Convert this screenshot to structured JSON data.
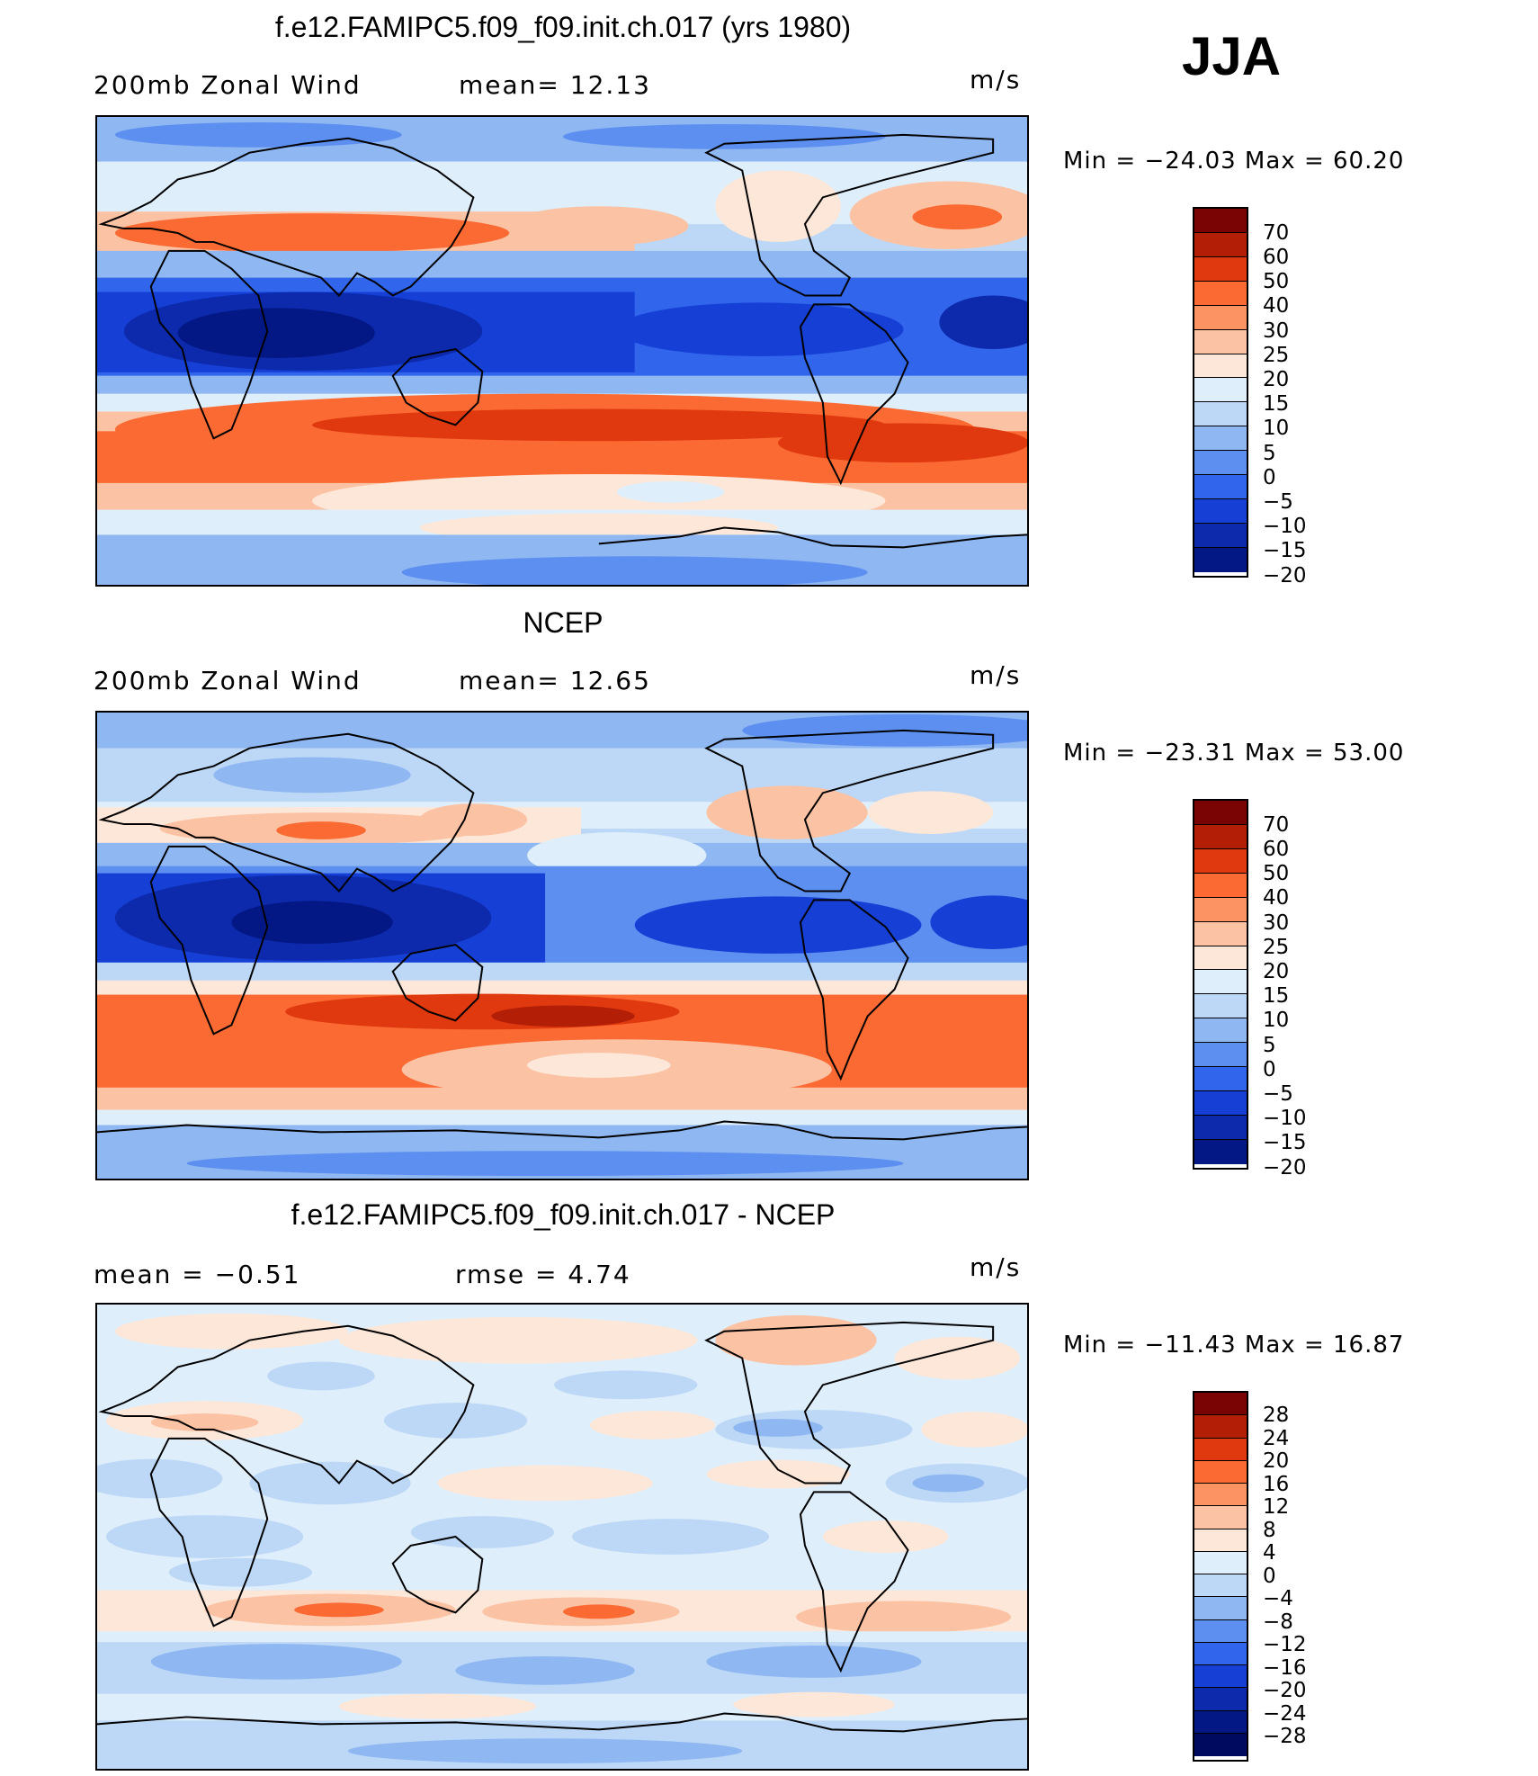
{
  "season": "JJA",
  "panels": [
    {
      "title": "f.e12.FAMIPC5.f09_f09.init.ch.017 (yrs 1980)",
      "left_label": "200mb  Zonal  Wind",
      "mid_label": "mean=   12.13",
      "unit": "m/s",
      "minmax": "Min  =  −24.03  Max  =    60.20",
      "colorbar": {
        "colors": [
          "#7a0403",
          "#b21e06",
          "#e0390f",
          "#fa6a32",
          "#fc9363",
          "#fcc2a4",
          "#fde7d8",
          "#dfeefb",
          "#bdd8f6",
          "#8fb7f1",
          "#5d8ff0",
          "#3065ec",
          "#163fd6",
          "#0c2aab",
          "#041885"
        ],
        "labels": [
          "70",
          "60",
          "50",
          "40",
          "30",
          "25",
          "20",
          "15",
          "10",
          "5",
          "0",
          "−5",
          "−10",
          "−15",
          "−20"
        ]
      }
    },
    {
      "title": "NCEP",
      "left_label": "200mb  Zonal  Wind",
      "mid_label": "mean=   12.65",
      "unit": "m/s",
      "minmax": "Min  =  −23.31  Max  =    53.00",
      "colorbar": {
        "colors": [
          "#7a0403",
          "#b21e06",
          "#e0390f",
          "#fa6a32",
          "#fc9363",
          "#fcc2a4",
          "#fde7d8",
          "#dfeefb",
          "#bdd8f6",
          "#8fb7f1",
          "#5d8ff0",
          "#3065ec",
          "#163fd6",
          "#0c2aab",
          "#041885"
        ],
        "labels": [
          "70",
          "60",
          "50",
          "40",
          "30",
          "25",
          "20",
          "15",
          "10",
          "5",
          "0",
          "−5",
          "−10",
          "−15",
          "−20"
        ]
      }
    },
    {
      "title": "f.e12.FAMIPC5.f09_f09.init.ch.017 - NCEP",
      "left_label": "mean  =    −0.51",
      "mid_label": "rmse  =     4.74",
      "unit": "m/s",
      "minmax": "Min  =  −11.43  Max  =    16.87",
      "colorbar": {
        "colors": [
          "#7a0403",
          "#b21e06",
          "#e0390f",
          "#fa6a32",
          "#fc9363",
          "#fcc2a4",
          "#fde7d8",
          "#dfeefb",
          "#bdd8f6",
          "#8fb7f1",
          "#5d8ff0",
          "#3065ec",
          "#163fd6",
          "#0c2aab",
          "#041885",
          "#000a5e"
        ],
        "labels": [
          "28",
          "24",
          "20",
          "16",
          "12",
          "8",
          "4",
          "0",
          "−4",
          "−8",
          "−12",
          "−16",
          "−20",
          "−24",
          "−28"
        ]
      }
    }
  ],
  "colors": {
    "jet_core": "#e84a1c",
    "easterlies": "#0c2aab",
    "coastline": "#000000"
  }
}
